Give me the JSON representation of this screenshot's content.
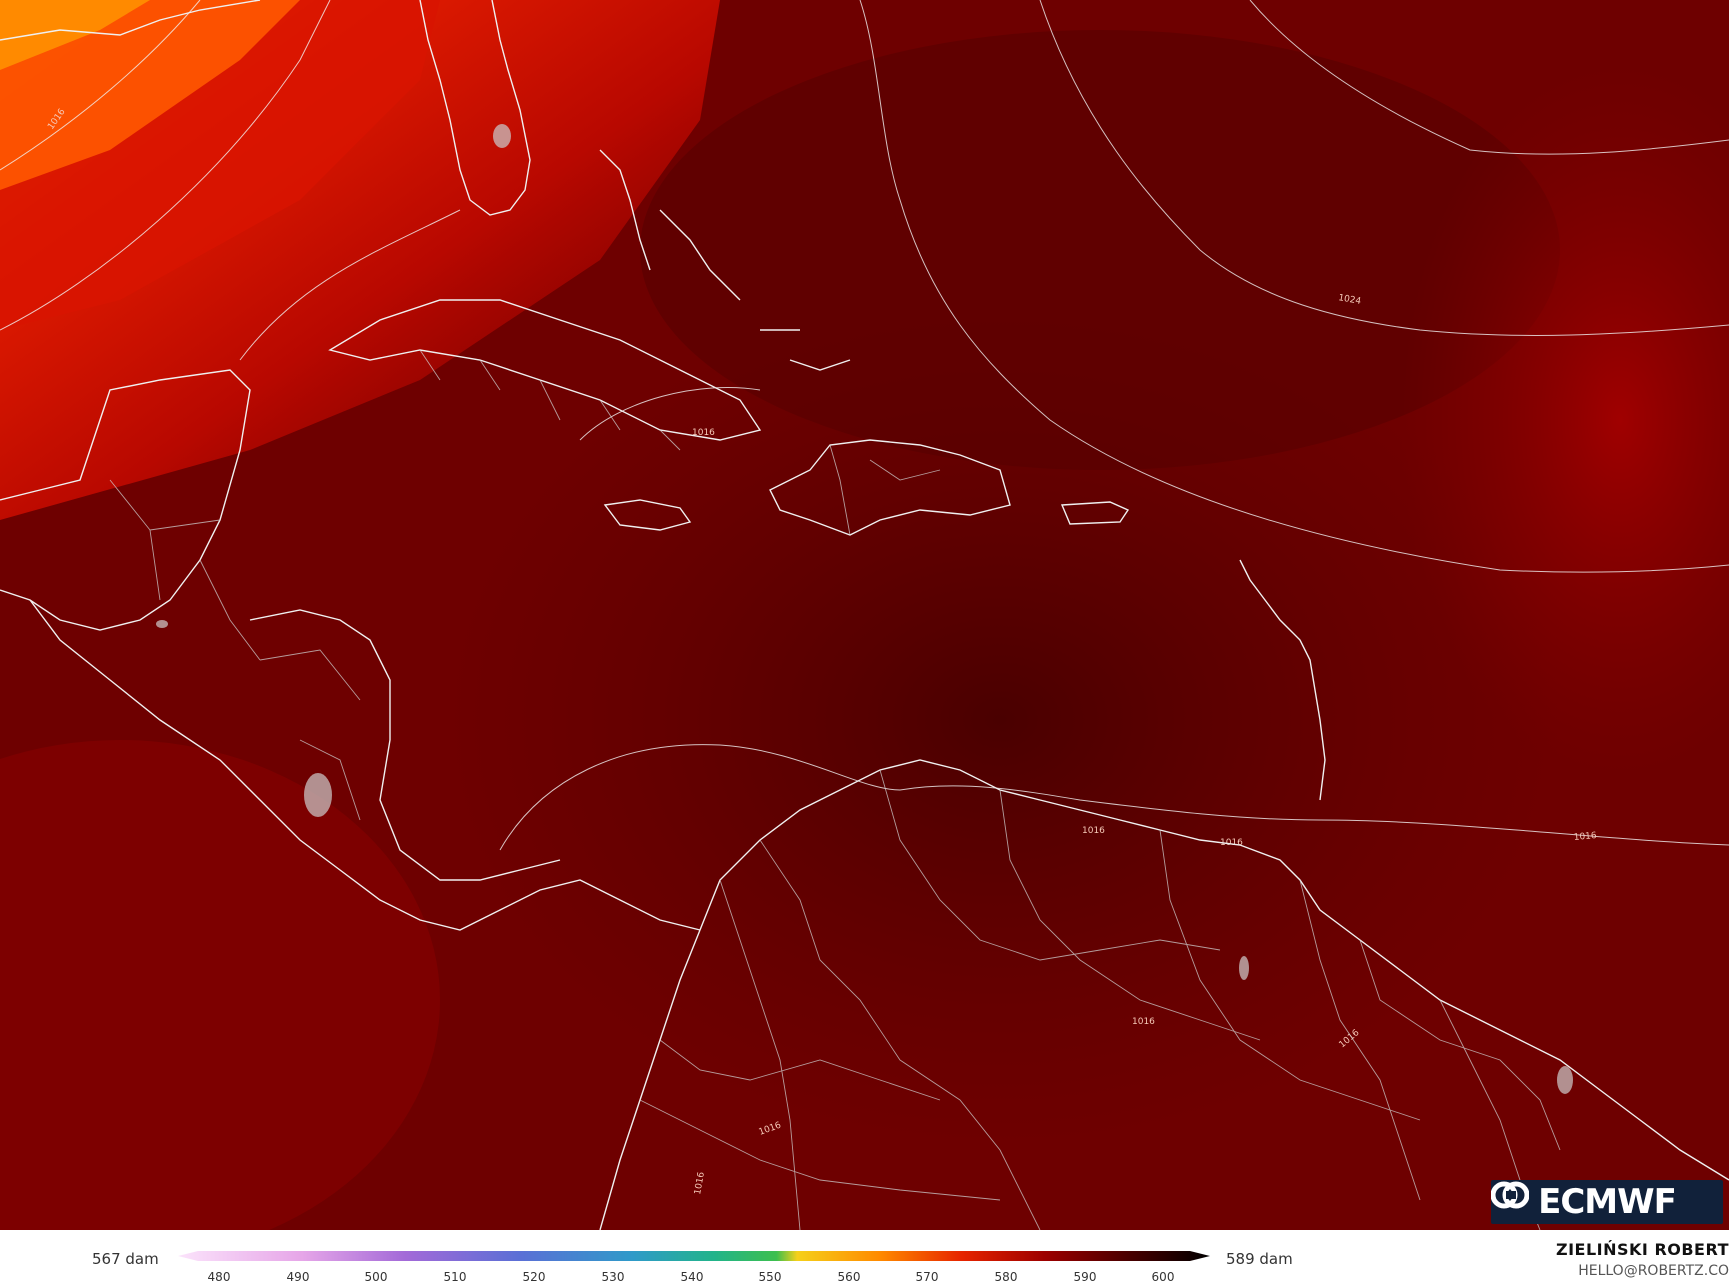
{
  "map": {
    "isobar_labels": [
      "1016",
      "1016",
      "1016",
      "1024",
      "1016",
      "1016",
      "1016",
      "1016",
      "1016",
      "1016"
    ],
    "colors": {
      "ocean_base": "#6a0000",
      "deep_core": "#4e0000",
      "mid_red": "#8a0000",
      "bright_red": "#cc1100",
      "orange": "#ff6a00",
      "coast_line": "#ffffff",
      "border_line": "#d8d8d8"
    }
  },
  "logo": {
    "text": "ECMWF",
    "icon": "ecmwf-logo-icon"
  },
  "legend": {
    "min_label": "567 dam",
    "max_label": "589 dam",
    "ticks": [
      "480",
      "490",
      "500",
      "510",
      "520",
      "530",
      "540",
      "550",
      "560",
      "570",
      "580",
      "590",
      "600"
    ]
  },
  "credit": {
    "name": "ZIELIŃSKI ROBERT",
    "email": "HELLO@ROBERTZ.CO"
  }
}
